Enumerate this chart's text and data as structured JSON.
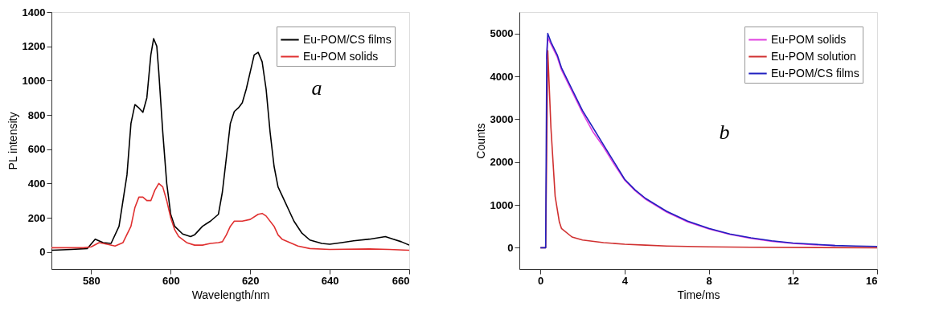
{
  "chart_data": [
    {
      "type": "line",
      "xlabel": "Wavelength/nm",
      "ylabel": "PL intensity",
      "xlim": [
        570,
        660
      ],
      "xticks": [
        580,
        600,
        620,
        640,
        660
      ],
      "ylim": [
        -100,
        1400
      ],
      "yticks": [
        0,
        200,
        400,
        600,
        800,
        1000,
        1200,
        1400
      ],
      "grid": false,
      "legend": "top right",
      "annotations": [
        "a"
      ],
      "series": [
        {
          "name": "Eu-POM/CS films",
          "color": "#000000",
          "x": [
            570,
            575,
            579,
            581,
            583,
            585,
            587,
            589,
            590,
            591,
            592,
            593,
            594,
            595,
            595.7,
            596.5,
            597,
            598,
            599,
            600,
            601,
            603,
            605,
            606,
            608,
            610,
            612,
            613,
            614,
            615,
            616,
            617,
            618,
            619,
            620,
            621,
            622,
            623,
            624,
            625,
            626,
            627,
            629,
            631,
            633,
            635,
            638,
            640,
            643,
            646,
            650,
            654,
            656,
            658,
            660
          ],
          "values": [
            10,
            15,
            20,
            75,
            55,
            50,
            150,
            450,
            750,
            860,
            840,
            815,
            900,
            1150,
            1245,
            1200,
            1050,
            700,
            400,
            220,
            150,
            105,
            90,
            100,
            150,
            180,
            220,
            350,
            550,
            750,
            820,
            840,
            870,
            950,
            1050,
            1150,
            1165,
            1110,
            950,
            700,
            500,
            380,
            280,
            180,
            110,
            70,
            50,
            45,
            55,
            65,
            75,
            90,
            75,
            60,
            40
          ]
        },
        {
          "name": "Eu-POM solids",
          "color": "#e03030",
          "x": [
            570,
            578,
            580,
            582,
            584,
            586,
            588,
            590,
            591,
            592,
            593,
            594,
            595,
            596,
            597,
            598,
            599,
            600,
            601,
            602,
            604,
            606,
            608,
            610,
            612,
            613,
            614,
            615,
            616,
            618,
            620,
            622,
            623,
            624,
            626,
            627,
            628,
            630,
            632,
            635,
            640,
            650,
            655,
            660
          ],
          "values": [
            25,
            25,
            30,
            55,
            45,
            35,
            55,
            150,
            260,
            320,
            320,
            300,
            300,
            360,
            400,
            380,
            300,
            200,
            130,
            90,
            55,
            40,
            40,
            50,
            55,
            60,
            100,
            150,
            180,
            180,
            190,
            220,
            225,
            210,
            150,
            100,
            75,
            55,
            35,
            20,
            15,
            18,
            15,
            10
          ]
        }
      ]
    },
    {
      "type": "line",
      "xlabel": "Time/ms",
      "ylabel": "Counts",
      "xlim": [
        -1,
        16
      ],
      "xticks": [
        0,
        4,
        8,
        12,
        16
      ],
      "ylim": [
        -500,
        5500
      ],
      "yticks": [
        0,
        1000,
        2000,
        3000,
        4000,
        5000
      ],
      "grid": false,
      "legend": "top right",
      "annotations": [
        "b"
      ],
      "series": [
        {
          "name": "Eu-POM solids",
          "color": "#e040e0",
          "x": [
            0.3,
            0.35,
            0.5,
            0.8,
            1,
            1.5,
            2,
            2.5,
            3,
            3.5,
            4,
            4.5,
            5,
            6,
            7,
            8,
            9,
            10,
            11,
            12,
            13,
            14
          ],
          "values": [
            4400,
            4900,
            4750,
            4450,
            4150,
            3650,
            3150,
            2700,
            2350,
            1950,
            1580,
            1330,
            1130,
            830,
            600,
            440,
            310,
            220,
            150,
            100,
            70,
            50
          ]
        },
        {
          "name": "Eu-POM solution",
          "color": "#d03030",
          "x": [
            0,
            0.25,
            0.35,
            0.5,
            0.7,
            0.9,
            1,
            1.5,
            2,
            3,
            4,
            5,
            6,
            8,
            10,
            16
          ],
          "values": [
            0,
            0,
            4600,
            2800,
            1200,
            600,
            450,
            250,
            180,
            120,
            80,
            60,
            40,
            20,
            10,
            0
          ]
        },
        {
          "name": "Eu-POM/CS films",
          "color": "#2020c0",
          "x": [
            0,
            0.25,
            0.3,
            0.35,
            0.5,
            0.8,
            1,
            1.5,
            2,
            2.5,
            3,
            3.5,
            4,
            4.5,
            5,
            6,
            7,
            8,
            9,
            10,
            11,
            12,
            13,
            14,
            15,
            16
          ],
          "values": [
            0,
            0,
            4500,
            5000,
            4800,
            4500,
            4200,
            3700,
            3200,
            2800,
            2400,
            2000,
            1600,
            1350,
            1150,
            850,
            620,
            450,
            320,
            230,
            160,
            110,
            80,
            50,
            40,
            30
          ]
        }
      ]
    }
  ]
}
